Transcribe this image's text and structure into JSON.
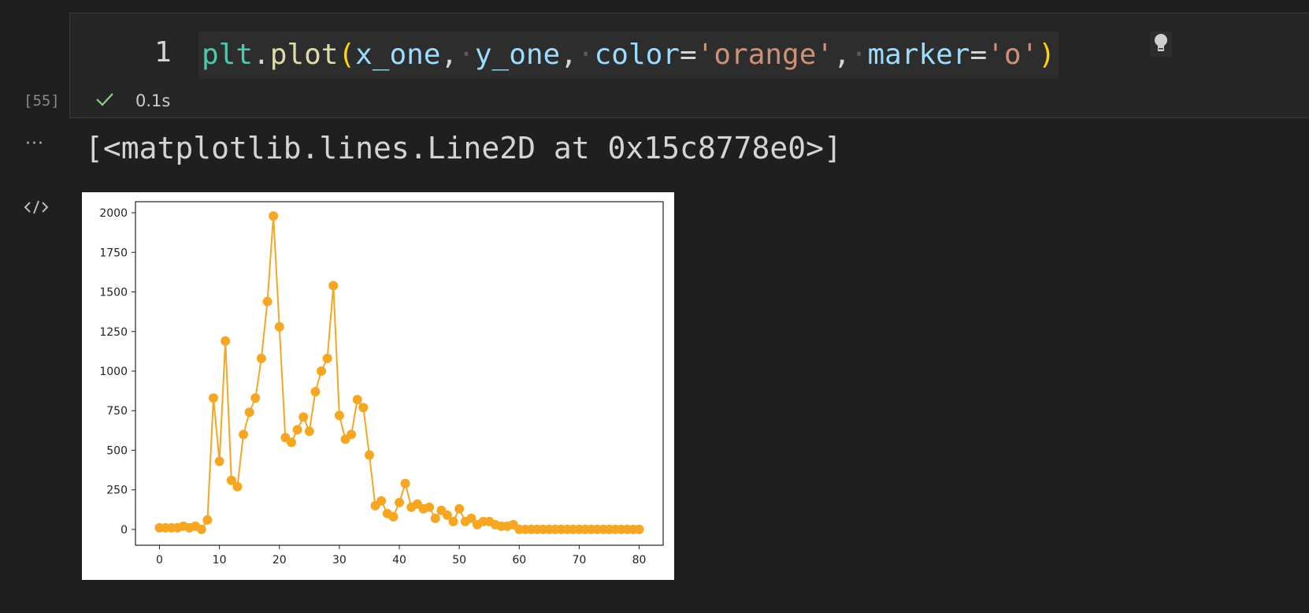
{
  "cell": {
    "execution_count": "[55]",
    "line_number": "1",
    "code": {
      "fn": "plt",
      "dot": ".",
      "call": "plot",
      "open": "(",
      "arg1": "x_one",
      "comma": ",",
      "arg2": "y_one",
      "kw1": "color",
      "eq": "=",
      "val1": "'orange'",
      "kw2": "marker",
      "val2": "'o'",
      "close": ")"
    },
    "status_icon": "check-icon",
    "duration": "0.1s"
  },
  "output": {
    "more_icon": "ellipsis-icon",
    "text": "[<matplotlib.lines.Line2D at 0x15c8778e0>]",
    "render_icon": "code-icon"
  },
  "chart_data": {
    "type": "line",
    "color": "#f5a623",
    "marker": "o",
    "x": [
      0,
      1,
      2,
      3,
      4,
      5,
      6,
      7,
      8,
      9,
      10,
      11,
      12,
      13,
      14,
      15,
      16,
      17,
      18,
      19,
      20,
      21,
      22,
      23,
      24,
      25,
      26,
      27,
      28,
      29,
      30,
      31,
      32,
      33,
      34,
      35,
      36,
      37,
      38,
      39,
      40,
      41,
      42,
      43,
      44,
      45,
      46,
      47,
      48,
      49,
      50,
      51,
      52,
      53,
      54,
      55,
      56,
      57,
      58,
      59,
      60,
      61,
      62,
      63,
      64,
      65,
      66,
      67,
      68,
      69,
      70,
      71,
      72,
      73,
      74,
      75,
      76,
      77,
      78,
      79,
      80
    ],
    "y": [
      10,
      10,
      10,
      10,
      20,
      10,
      20,
      0,
      60,
      830,
      430,
      1190,
      310,
      270,
      600,
      740,
      830,
      1080,
      1440,
      1980,
      1280,
      580,
      550,
      630,
      710,
      620,
      870,
      1000,
      1080,
      1540,
      720,
      570,
      600,
      820,
      770,
      470,
      150,
      180,
      100,
      80,
      170,
      290,
      140,
      160,
      130,
      140,
      70,
      120,
      90,
      50,
      130,
      50,
      70,
      30,
      50,
      50,
      30,
      20,
      20,
      30,
      0,
      0,
      0,
      0,
      0,
      0,
      0,
      0,
      0,
      0,
      0,
      0,
      0,
      0,
      0,
      0,
      0,
      0,
      0,
      0,
      0
    ],
    "xticks": [
      "0",
      "10",
      "20",
      "30",
      "40",
      "50",
      "60",
      "70",
      "80"
    ],
    "yticks": [
      "0",
      "250",
      "500",
      "750",
      "1000",
      "1250",
      "1500",
      "1750",
      "2000"
    ],
    "xlim": [
      -4,
      84
    ],
    "ylim": [
      -100,
      2070
    ],
    "title": "",
    "xlabel": "",
    "ylabel": ""
  }
}
